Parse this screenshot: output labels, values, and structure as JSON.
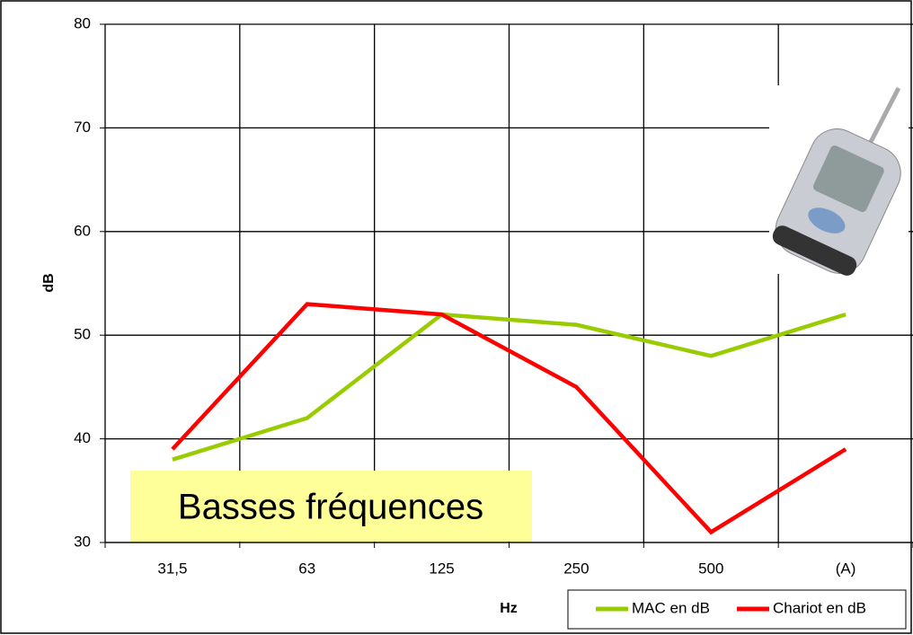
{
  "chart_data": {
    "type": "line",
    "categories": [
      "31,5",
      "63",
      "125",
      "250",
      "500",
      "(A)"
    ],
    "series": [
      {
        "name": "MAC en dB",
        "color": "#99cc00",
        "values": [
          38,
          42,
          52,
          51,
          48,
          52
        ]
      },
      {
        "name": "Chariot en dB",
        "color": "#ff0000",
        "values": [
          39,
          53,
          52,
          45,
          31,
          39
        ]
      }
    ],
    "ylim": [
      30,
      80
    ],
    "yticks": [
      30,
      40,
      50,
      60,
      70,
      80
    ],
    "grid": true,
    "y_label": "dB",
    "x_label": "Hz",
    "annotation": "Basses fréquences",
    "legend": "bottom-right"
  }
}
